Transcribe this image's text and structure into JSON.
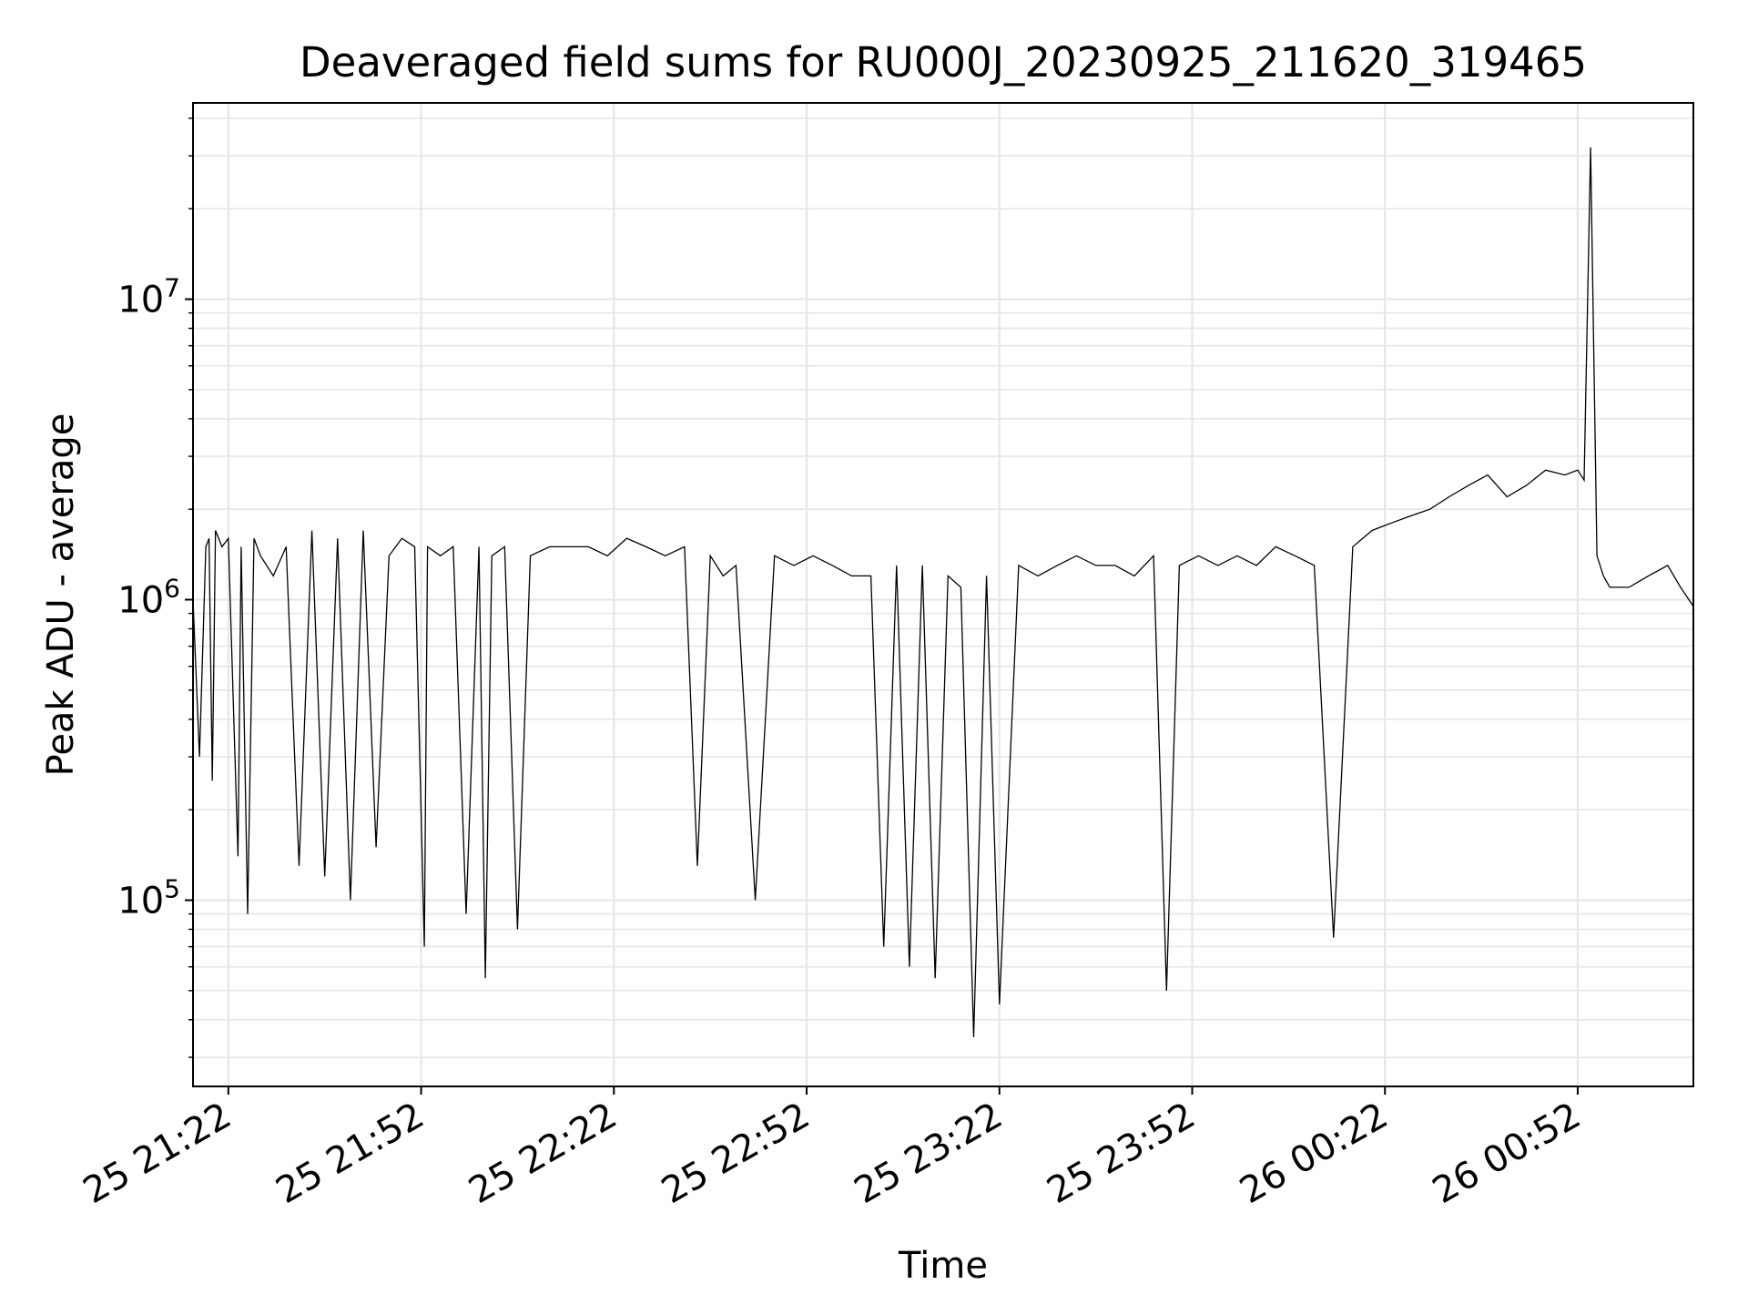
{
  "chart_data": {
    "type": "line",
    "title": "Deaveraged field sums for RU000J_20230925_211620_319465",
    "xlabel": "Time",
    "ylabel": "Peak ADU - average",
    "yscale": "log",
    "ylim": [
      24000,
      45000000
    ],
    "xlim": [
      "2023-09-25 21:16:30",
      "2023-09-26 01:10:00"
    ],
    "x_ticks": [
      {
        "time": "2023-09-25 21:22",
        "label": "25 21:22"
      },
      {
        "time": "2023-09-25 21:52",
        "label": "25 21:52"
      },
      {
        "time": "2023-09-25 22:22",
        "label": "25 22:22"
      },
      {
        "time": "2023-09-25 22:52",
        "label": "25 22:52"
      },
      {
        "time": "2023-09-25 23:22",
        "label": "25 23:22"
      },
      {
        "time": "2023-09-25 23:52",
        "label": "25 23:52"
      },
      {
        "time": "2023-09-26 00:22",
        "label": "26 00:22"
      },
      {
        "time": "2023-09-26 00:52",
        "label": "26 00:52"
      }
    ],
    "y_ticks": [
      {
        "value": 100000,
        "base": "10",
        "exp": "5"
      },
      {
        "value": 1000000,
        "base": "10",
        "exp": "6"
      },
      {
        "value": 10000000,
        "base": "10",
        "exp": "7"
      }
    ],
    "grid": true,
    "legend": "none",
    "line_color": "#000000",
    "grid_color": "#e6e6e6",
    "series": [
      {
        "x": [
          "2023-09-25 21:16:30",
          "2023-09-25 21:17:30",
          "2023-09-25 21:18:30",
          "2023-09-25 21:19:00",
          "2023-09-25 21:19:30",
          "2023-09-25 21:20:00",
          "2023-09-25 21:21:00",
          "2023-09-25 21:22:00",
          "2023-09-25 21:23:30",
          "2023-09-25 21:24:00",
          "2023-09-25 21:25:00",
          "2023-09-25 21:26:00",
          "2023-09-25 21:27:00",
          "2023-09-25 21:29:00",
          "2023-09-25 21:31:00",
          "2023-09-25 21:33:00",
          "2023-09-25 21:35:00",
          "2023-09-25 21:37:00",
          "2023-09-25 21:39:00",
          "2023-09-25 21:41:00",
          "2023-09-25 21:43:00",
          "2023-09-25 21:45:00",
          "2023-09-25 21:47:00",
          "2023-09-25 21:49:00",
          "2023-09-25 21:51:00",
          "2023-09-25 21:52:30",
          "2023-09-25 21:53:00",
          "2023-09-25 21:55:00",
          "2023-09-25 21:57:00",
          "2023-09-25 21:59:00",
          "2023-09-25 22:01:00",
          "2023-09-25 22:02:00",
          "2023-09-25 22:03:00",
          "2023-09-25 22:05:00",
          "2023-09-25 22:07:00",
          "2023-09-25 22:09:00",
          "2023-09-25 22:12:00",
          "2023-09-25 22:15:00",
          "2023-09-25 22:18:00",
          "2023-09-25 22:21:00",
          "2023-09-25 22:24:00",
          "2023-09-25 22:27:00",
          "2023-09-25 22:30:00",
          "2023-09-25 22:33:00",
          "2023-09-25 22:35:00",
          "2023-09-25 22:37:00",
          "2023-09-25 22:39:00",
          "2023-09-25 22:41:00",
          "2023-09-25 22:44:00",
          "2023-09-25 22:47:00",
          "2023-09-25 22:50:00",
          "2023-09-25 22:53:00",
          "2023-09-25 22:56:00",
          "2023-09-25 22:59:00",
          "2023-09-25 23:02:00",
          "2023-09-25 23:04:00",
          "2023-09-25 23:06:00",
          "2023-09-25 23:08:00",
          "2023-09-25 23:10:00",
          "2023-09-25 23:12:00",
          "2023-09-25 23:14:00",
          "2023-09-25 23:16:00",
          "2023-09-25 23:18:00",
          "2023-09-25 23:20:00",
          "2023-09-25 23:22:00",
          "2023-09-25 23:25:00",
          "2023-09-25 23:28:00",
          "2023-09-25 23:31:00",
          "2023-09-25 23:34:00",
          "2023-09-25 23:37:00",
          "2023-09-25 23:40:00",
          "2023-09-25 23:43:00",
          "2023-09-25 23:46:00",
          "2023-09-25 23:48:00",
          "2023-09-25 23:50:00",
          "2023-09-25 23:53:00",
          "2023-09-25 23:56:00",
          "2023-09-25 23:59:00",
          "2023-09-26 00:02:00",
          "2023-09-26 00:05:00",
          "2023-09-26 00:08:00",
          "2023-09-26 00:11:00",
          "2023-09-26 00:14:00",
          "2023-09-26 00:17:00",
          "2023-09-26 00:20:00",
          "2023-09-26 00:23:00",
          "2023-09-26 00:26:00",
          "2023-09-26 00:29:00",
          "2023-09-26 00:32:00",
          "2023-09-26 00:35:00",
          "2023-09-26 00:38:00",
          "2023-09-26 00:41:00",
          "2023-09-26 00:44:00",
          "2023-09-26 00:47:00",
          "2023-09-26 00:50:00",
          "2023-09-26 00:52:00",
          "2023-09-26 00:53:00",
          "2023-09-26 00:54:00",
          "2023-09-26 00:55:00",
          "2023-09-26 00:56:00",
          "2023-09-26 00:57:00",
          "2023-09-26 01:00:00",
          "2023-09-26 01:03:00",
          "2023-09-26 01:06:00",
          "2023-09-26 01:08:00",
          "2023-09-26 01:10:00"
        ],
        "y": [
          1000000,
          300000,
          1500000,
          1600000,
          250000,
          1700000,
          1500000,
          1600000,
          140000,
          1500000,
          90000,
          1600000,
          1400000,
          1200000,
          1500000,
          130000,
          1700000,
          120000,
          1600000,
          100000,
          1700000,
          150000,
          1400000,
          1600000,
          1500000,
          70000,
          1500000,
          1400000,
          1500000,
          90000,
          1500000,
          55000,
          1400000,
          1500000,
          80000,
          1400000,
          1500000,
          1500000,
          1500000,
          1400000,
          1600000,
          1500000,
          1400000,
          1500000,
          130000,
          1400000,
          1200000,
          1300000,
          100000,
          1400000,
          1300000,
          1400000,
          1300000,
          1200000,
          1200000,
          70000,
          1300000,
          60000,
          1300000,
          55000,
          1200000,
          1100000,
          35000,
          1200000,
          45000,
          1300000,
          1200000,
          1300000,
          1400000,
          1300000,
          1300000,
          1200000,
          1400000,
          50000,
          1300000,
          1400000,
          1300000,
          1400000,
          1300000,
          1500000,
          1400000,
          1300000,
          75000,
          1500000,
          1700000,
          1800000,
          1900000,
          2000000,
          2200000,
          2400000,
          2600000,
          2200000,
          2400000,
          2700000,
          2600000,
          2700000,
          2500000,
          32000000,
          1400000,
          1200000,
          1100000,
          1100000,
          1200000,
          1300000,
          1100000,
          950000
        ]
      }
    ]
  }
}
